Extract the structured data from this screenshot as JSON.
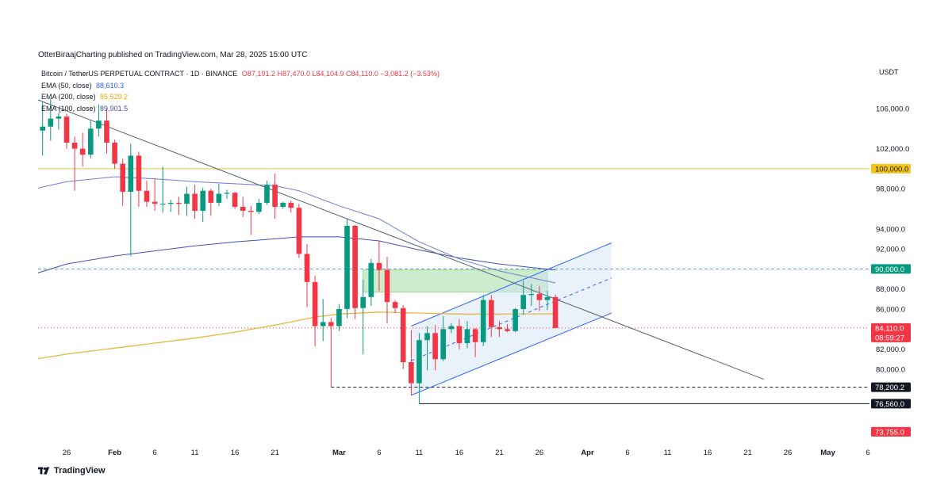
{
  "header": {
    "publisher": "OtterBiraajCharting published on TradingView.com, Mar 28, 2025 15:00 UTC"
  },
  "legend": {
    "symbol": "Bitcoin / TetherUS PERPETUAL CONTRACT · 1D · BINANCE",
    "ohlc": "O87,191.2  H87,470.0  L84,104.9  C84,110.0  −3,081.2 (−3.53%)",
    "ema": [
      {
        "label": "EMA (50, close)",
        "value": "88,610.3",
        "color": "#2962ff"
      },
      {
        "label": "EMA (200, close)",
        "value": "85,529.2",
        "color": "#f0a500"
      },
      {
        "label": "EMA (100, close)",
        "value": "89,901.5",
        "color": "#3f51b5"
      }
    ]
  },
  "axis": {
    "unit": "USDT"
  },
  "footer": {
    "brand": "TradingView"
  },
  "colors": {
    "up": "#089981",
    "down": "#f23645",
    "ema50": "#6a7fd8",
    "ema100": "#3f51b5",
    "ema200": "#e8b73e",
    "level100k": "#e0c23a"
  },
  "chart_data": {
    "type": "candlestick",
    "ylim": [
      72500,
      110500
    ],
    "y_ticks": [
      {
        "value": 106000,
        "label": "106,000.0"
      },
      {
        "value": 102000,
        "label": "102,000.0"
      },
      {
        "value": 98000,
        "label": "98,000.0"
      },
      {
        "value": 94000,
        "label": "94,000.0"
      },
      {
        "value": 92000,
        "label": "92,000.0"
      },
      {
        "value": 88000,
        "label": "88,000.0"
      },
      {
        "value": 86000,
        "label": "86,000.0"
      },
      {
        "value": 82000,
        "label": "82,000.0"
      },
      {
        "value": 80000,
        "label": "80,000.0"
      }
    ],
    "price_labels": [
      {
        "value": 100000,
        "label": "100,000.0",
        "bg": "#f5c518",
        "fg": "#131722"
      },
      {
        "value": 90000,
        "label": "90,000.0",
        "bg": "#089981",
        "fg": "#ffffff"
      },
      {
        "value": 84110,
        "label": "84,110.0",
        "label2": "08:59:27",
        "bg": "#f23645",
        "fg": "#ffffff"
      },
      {
        "value": 78200,
        "label": "78,200.2",
        "bg": "#131722",
        "fg": "#ffffff"
      },
      {
        "value": 76560,
        "label": "76,560.0",
        "bg": "#131722",
        "fg": "#ffffff"
      },
      {
        "value": 73755,
        "label": "73,755.0",
        "bg": "#f23645",
        "fg": "#ffffff"
      }
    ],
    "x_ticks": [
      {
        "date": "2025-01-26",
        "label": "26",
        "bold": false
      },
      {
        "date": "2025-02-01",
        "label": "Feb",
        "bold": true
      },
      {
        "date": "2025-02-06",
        "label": "6",
        "bold": false
      },
      {
        "date": "2025-02-11",
        "label": "11",
        "bold": false
      },
      {
        "date": "2025-02-16",
        "label": "16",
        "bold": false
      },
      {
        "date": "2025-02-21",
        "label": "21",
        "bold": false
      },
      {
        "date": "2025-03-01",
        "label": "Mar",
        "bold": true
      },
      {
        "date": "2025-03-06",
        "label": "6",
        "bold": false
      },
      {
        "date": "2025-03-11",
        "label": "11",
        "bold": false
      },
      {
        "date": "2025-03-16",
        "label": "16",
        "bold": false
      },
      {
        "date": "2025-03-21",
        "label": "21",
        "bold": false
      },
      {
        "date": "2025-03-26",
        "label": "26",
        "bold": false
      },
      {
        "date": "2025-04-01",
        "label": "Apr",
        "bold": true
      },
      {
        "date": "2025-04-06",
        "label": "6",
        "bold": false
      },
      {
        "date": "2025-04-11",
        "label": "11",
        "bold": false
      },
      {
        "date": "2025-04-16",
        "label": "16",
        "bold": false
      },
      {
        "date": "2025-04-21",
        "label": "21",
        "bold": false
      },
      {
        "date": "2025-04-26",
        "label": "26",
        "bold": false
      },
      {
        "date": "2025-05-01",
        "label": "May",
        "bold": true
      },
      {
        "date": "2025-05-06",
        "label": "6",
        "bold": false
      }
    ],
    "candles": [
      {
        "t": "2025-01-22",
        "o": 104500,
        "h": 106500,
        "l": 102500,
        "c": 103800
      },
      {
        "t": "2025-01-23",
        "o": 103800,
        "h": 106700,
        "l": 101300,
        "c": 104200
      },
      {
        "t": "2025-01-24",
        "o": 104200,
        "h": 107000,
        "l": 102800,
        "c": 105000
      },
      {
        "t": "2025-01-25",
        "o": 105000,
        "h": 105600,
        "l": 103900,
        "c": 105200
      },
      {
        "t": "2025-01-26",
        "o": 105200,
        "h": 105500,
        "l": 102000,
        "c": 102600
      },
      {
        "t": "2025-01-27",
        "o": 102600,
        "h": 103200,
        "l": 97800,
        "c": 102000
      },
      {
        "t": "2025-01-28",
        "o": 102000,
        "h": 103600,
        "l": 100200,
        "c": 101400
      },
      {
        "t": "2025-01-29",
        "o": 101400,
        "h": 104800,
        "l": 101000,
        "c": 104000
      },
      {
        "t": "2025-01-30",
        "o": 104000,
        "h": 106400,
        "l": 103200,
        "c": 104800
      },
      {
        "t": "2025-01-31",
        "o": 104800,
        "h": 106000,
        "l": 101500,
        "c": 102600
      },
      {
        "t": "2025-02-01",
        "o": 102600,
        "h": 102900,
        "l": 100000,
        "c": 100500
      },
      {
        "t": "2025-02-02",
        "o": 100500,
        "h": 101000,
        "l": 96300,
        "c": 97700
      },
      {
        "t": "2025-02-03",
        "o": 97700,
        "h": 102500,
        "l": 91300,
        "c": 101300
      },
      {
        "t": "2025-02-04",
        "o": 101300,
        "h": 101700,
        "l": 96200,
        "c": 97800
      },
      {
        "t": "2025-02-05",
        "o": 97800,
        "h": 98800,
        "l": 96200,
        "c": 96700
      },
      {
        "t": "2025-02-06",
        "o": 96700,
        "h": 99000,
        "l": 95800,
        "c": 96500
      },
      {
        "t": "2025-02-07",
        "o": 96500,
        "h": 100200,
        "l": 95600,
        "c": 96500
      },
      {
        "t": "2025-02-08",
        "o": 96500,
        "h": 96900,
        "l": 95700,
        "c": 96600
      },
      {
        "t": "2025-02-09",
        "o": 96600,
        "h": 97200,
        "l": 95400,
        "c": 96500
      },
      {
        "t": "2025-02-10",
        "o": 96500,
        "h": 98200,
        "l": 95300,
        "c": 97500
      },
      {
        "t": "2025-02-11",
        "o": 97500,
        "h": 98400,
        "l": 95000,
        "c": 95800
      },
      {
        "t": "2025-02-12",
        "o": 95800,
        "h": 98100,
        "l": 94700,
        "c": 97800
      },
      {
        "t": "2025-02-13",
        "o": 97800,
        "h": 98000,
        "l": 95300,
        "c": 96600
      },
      {
        "t": "2025-02-14",
        "o": 96600,
        "h": 98500,
        "l": 96300,
        "c": 97500
      },
      {
        "t": "2025-02-15",
        "o": 97500,
        "h": 97900,
        "l": 97000,
        "c": 97600
      },
      {
        "t": "2025-02-16",
        "o": 97600,
        "h": 97700,
        "l": 96000,
        "c": 96200
      },
      {
        "t": "2025-02-17",
        "o": 96200,
        "h": 97200,
        "l": 95200,
        "c": 95800
      },
      {
        "t": "2025-02-18",
        "o": 95800,
        "h": 96300,
        "l": 93400,
        "c": 95700
      },
      {
        "t": "2025-02-19",
        "o": 95700,
        "h": 97000,
        "l": 95500,
        "c": 96600
      },
      {
        "t": "2025-02-20",
        "o": 96600,
        "h": 98800,
        "l": 96400,
        "c": 98400
      },
      {
        "t": "2025-02-21",
        "o": 98400,
        "h": 99500,
        "l": 95000,
        "c": 96200
      },
      {
        "t": "2025-02-22",
        "o": 96200,
        "h": 96700,
        "l": 96000,
        "c": 96600
      },
      {
        "t": "2025-02-23",
        "o": 96600,
        "h": 96800,
        "l": 95600,
        "c": 96100
      },
      {
        "t": "2025-02-24",
        "o": 96100,
        "h": 96500,
        "l": 91100,
        "c": 91500
      },
      {
        "t": "2025-02-25",
        "o": 91500,
        "h": 92500,
        "l": 86200,
        "c": 88700
      },
      {
        "t": "2025-02-26",
        "o": 88700,
        "h": 89300,
        "l": 82300,
        "c": 84300
      },
      {
        "t": "2025-02-27",
        "o": 84300,
        "h": 87000,
        "l": 82800,
        "c": 84700
      },
      {
        "t": "2025-02-28",
        "o": 84700,
        "h": 85100,
        "l": 78200,
        "c": 84300
      },
      {
        "t": "2025-03-01",
        "o": 84300,
        "h": 86500,
        "l": 83800,
        "c": 86000
      },
      {
        "t": "2025-03-02",
        "o": 86000,
        "h": 95000,
        "l": 85100,
        "c": 94300
      },
      {
        "t": "2025-03-03",
        "o": 94300,
        "h": 94400,
        "l": 85000,
        "c": 86100
      },
      {
        "t": "2025-03-04",
        "o": 86100,
        "h": 88900,
        "l": 81500,
        "c": 87200
      },
      {
        "t": "2025-03-05",
        "o": 87200,
        "h": 91000,
        "l": 86300,
        "c": 90600
      },
      {
        "t": "2025-03-06",
        "o": 90600,
        "h": 92800,
        "l": 87800,
        "c": 89900
      },
      {
        "t": "2025-03-07",
        "o": 89900,
        "h": 91200,
        "l": 84600,
        "c": 86700
      },
      {
        "t": "2025-03-08",
        "o": 86700,
        "h": 86900,
        "l": 85600,
        "c": 86100
      },
      {
        "t": "2025-03-09",
        "o": 86100,
        "h": 86400,
        "l": 80000,
        "c": 80700
      },
      {
        "t": "2025-03-10",
        "o": 80700,
        "h": 83900,
        "l": 77400,
        "c": 78600
      },
      {
        "t": "2025-03-11",
        "o": 78600,
        "h": 83600,
        "l": 76560,
        "c": 82900
      },
      {
        "t": "2025-03-12",
        "o": 82900,
        "h": 84300,
        "l": 79900,
        "c": 83600
      },
      {
        "t": "2025-03-13",
        "o": 83600,
        "h": 84400,
        "l": 79900,
        "c": 81000
      },
      {
        "t": "2025-03-14",
        "o": 81000,
        "h": 85300,
        "l": 80800,
        "c": 84000
      },
      {
        "t": "2025-03-15",
        "o": 84000,
        "h": 84600,
        "l": 83600,
        "c": 84300
      },
      {
        "t": "2025-03-16",
        "o": 84300,
        "h": 85000,
        "l": 82000,
        "c": 82600
      },
      {
        "t": "2025-03-17",
        "o": 82600,
        "h": 84800,
        "l": 82100,
        "c": 84000
      },
      {
        "t": "2025-03-18",
        "o": 84000,
        "h": 84100,
        "l": 81200,
        "c": 82700
      },
      {
        "t": "2025-03-19",
        "o": 82700,
        "h": 87400,
        "l": 82300,
        "c": 86900
      },
      {
        "t": "2025-03-20",
        "o": 86900,
        "h": 87400,
        "l": 83200,
        "c": 84200
      },
      {
        "t": "2025-03-21",
        "o": 84200,
        "h": 84800,
        "l": 83200,
        "c": 84000
      },
      {
        "t": "2025-03-22",
        "o": 84000,
        "h": 84500,
        "l": 83700,
        "c": 83800
      },
      {
        "t": "2025-03-23",
        "o": 83800,
        "h": 86100,
        "l": 83700,
        "c": 86000
      },
      {
        "t": "2025-03-24",
        "o": 86000,
        "h": 88800,
        "l": 85500,
        "c": 87400
      },
      {
        "t": "2025-03-25",
        "o": 87400,
        "h": 88500,
        "l": 86300,
        "c": 87500
      },
      {
        "t": "2025-03-26",
        "o": 87500,
        "h": 88300,
        "l": 85800,
        "c": 86900
      },
      {
        "t": "2025-03-27",
        "o": 86900,
        "h": 87800,
        "l": 85900,
        "c": 87191
      },
      {
        "t": "2025-03-28",
        "o": 87191,
        "h": 87470,
        "l": 84105,
        "c": 84110
      }
    ],
    "ema50": [
      {
        "t": "2025-01-22",
        "v": 98000
      },
      {
        "t": "2025-01-26",
        "v": 98700
      },
      {
        "t": "2025-02-01",
        "v": 99200
      },
      {
        "t": "2025-02-06",
        "v": 99000
      },
      {
        "t": "2025-02-11",
        "v": 98700
      },
      {
        "t": "2025-02-16",
        "v": 98500
      },
      {
        "t": "2025-02-21",
        "v": 98300
      },
      {
        "t": "2025-02-24",
        "v": 97800
      },
      {
        "t": "2025-03-01",
        "v": 96300
      },
      {
        "t": "2025-03-06",
        "v": 95000
      },
      {
        "t": "2025-03-11",
        "v": 92700
      },
      {
        "t": "2025-03-16",
        "v": 91000
      },
      {
        "t": "2025-03-21",
        "v": 89800
      },
      {
        "t": "2025-03-28",
        "v": 88610
      }
    ],
    "ema100": [
      {
        "t": "2025-01-22",
        "v": 89500
      },
      {
        "t": "2025-01-26",
        "v": 90500
      },
      {
        "t": "2025-02-01",
        "v": 91300
      },
      {
        "t": "2025-02-06",
        "v": 91800
      },
      {
        "t": "2025-02-11",
        "v": 92300
      },
      {
        "t": "2025-02-16",
        "v": 92700
      },
      {
        "t": "2025-02-21",
        "v": 93000
      },
      {
        "t": "2025-02-24",
        "v": 93200
      },
      {
        "t": "2025-03-01",
        "v": 93200
      },
      {
        "t": "2025-03-06",
        "v": 92800
      },
      {
        "t": "2025-03-11",
        "v": 91900
      },
      {
        "t": "2025-03-16",
        "v": 91100
      },
      {
        "t": "2025-03-21",
        "v": 90500
      },
      {
        "t": "2025-03-28",
        "v": 89900
      }
    ],
    "ema200": [
      {
        "t": "2025-01-22",
        "v": 81000
      },
      {
        "t": "2025-01-26",
        "v": 81500
      },
      {
        "t": "2025-02-01",
        "v": 82100
      },
      {
        "t": "2025-02-06",
        "v": 82600
      },
      {
        "t": "2025-02-11",
        "v": 83100
      },
      {
        "t": "2025-02-16",
        "v": 83700
      },
      {
        "t": "2025-02-21",
        "v": 84400
      },
      {
        "t": "2025-02-26",
        "v": 85200
      },
      {
        "t": "2025-03-01",
        "v": 85500
      },
      {
        "t": "2025-03-06",
        "v": 85700
      },
      {
        "t": "2025-03-11",
        "v": 85600
      },
      {
        "t": "2025-03-16",
        "v": 85500
      },
      {
        "t": "2025-03-21",
        "v": 85500
      },
      {
        "t": "2025-03-28",
        "v": 85529
      }
    ],
    "horizontal_lines": [
      {
        "value": 100000,
        "style": "solid",
        "color": "#e0c23a"
      },
      {
        "value": 90000,
        "style": "dashed",
        "color": "#5b9bd5"
      },
      {
        "value": 84110,
        "style": "dotted",
        "color": "#f23645"
      }
    ],
    "horizontal_segments": [
      {
        "value": 78200,
        "from": "2025-02-28",
        "to": "2025-05-06",
        "style": "dashed",
        "color": "#131722"
      },
      {
        "value": 76560,
        "from": "2025-03-11",
        "to": "2025-05-06",
        "style": "solid",
        "color": "#131722"
      }
    ],
    "trendline": {
      "from": {
        "t": "2025-01-22",
        "v": 107000
      },
      "to": {
        "t": "2025-04-23",
        "v": 79000
      },
      "color": "#555f70"
    },
    "channel": {
      "upper": {
        "from": {
          "t": "2025-03-10",
          "v": 84300
        },
        "to": {
          "t": "2025-04-04",
          "v": 92600
        }
      },
      "lower": {
        "from": {
          "t": "2025-03-10",
          "v": 77400
        },
        "to": {
          "t": "2025-04-04",
          "v": 85600
        }
      },
      "color": "#2962ff",
      "fill": "#cfe3f7"
    },
    "zone": {
      "from": "2025-03-04",
      "to": "2025-03-27",
      "top": 89900,
      "bottom": 87700,
      "fill": "#c8ebc8",
      "stroke": "#7dcf7d"
    }
  }
}
